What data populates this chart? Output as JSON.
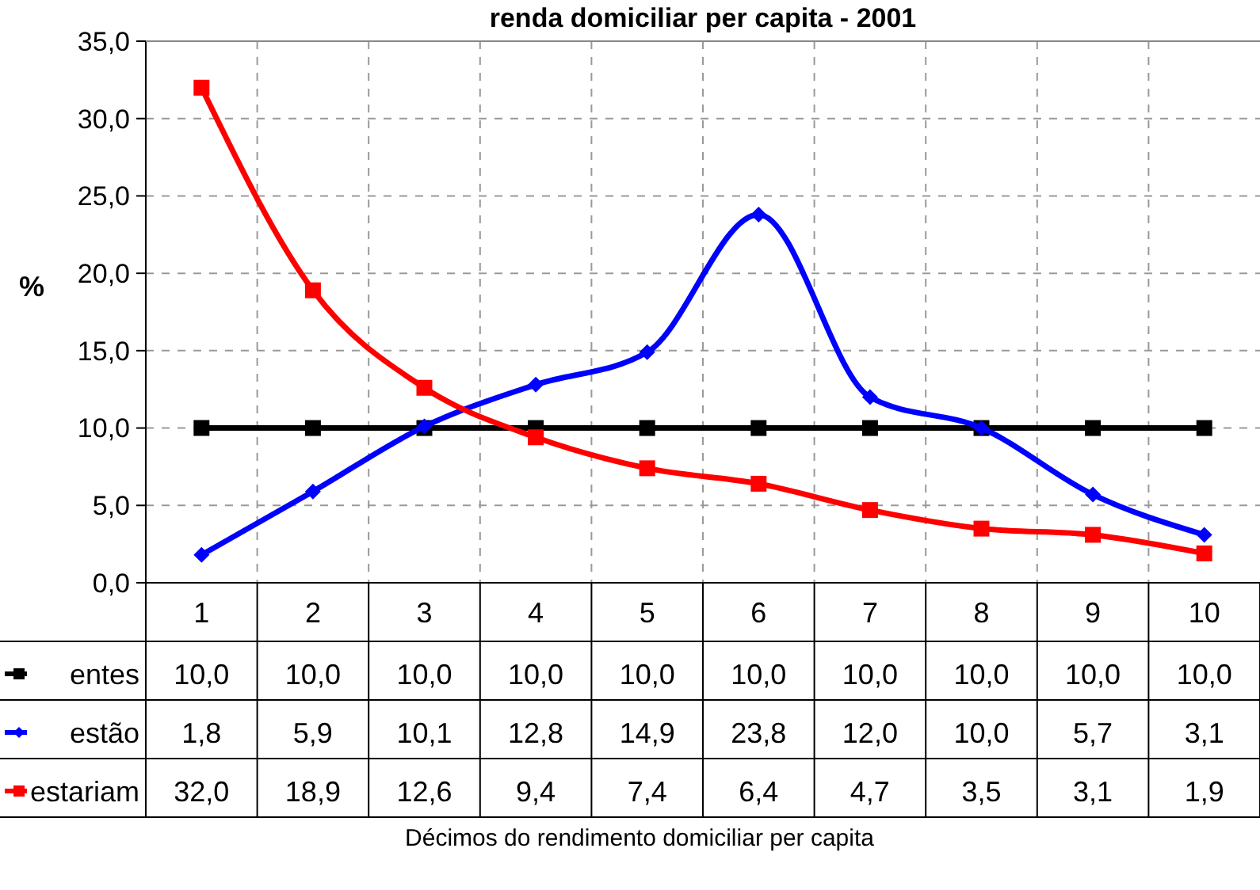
{
  "chart_data": {
    "type": "line",
    "title": "renda domiciliar per capita - 2001",
    "ylabel": "%",
    "annotations": [
      "Décimos do rendimento domiciliar per capita"
    ],
    "categories": [
      "1",
      "2",
      "3",
      "4",
      "5",
      "6",
      "7",
      "8",
      "9",
      "10"
    ],
    "series": [
      {
        "name": "entes",
        "color": "#000000",
        "marker": "square",
        "values": [
          10,
          10,
          10,
          10,
          10,
          10,
          10,
          10,
          10,
          10
        ],
        "value_labels": [
          "10,0",
          "10,0",
          "10,0",
          "10,0",
          "10,0",
          "10,0",
          "10,0",
          "10,0",
          "10,0",
          "10,0"
        ]
      },
      {
        "name": "estão",
        "color": "#0000ff",
        "marker": "diamond",
        "values": [
          1.8,
          5.9,
          10.1,
          12.8,
          14.9,
          23.8,
          12.0,
          10.0,
          5.7,
          3.1
        ],
        "value_labels": [
          "1,8",
          "5,9",
          "10,1",
          "12,8",
          "14,9",
          "23,8",
          "12,0",
          "10,0",
          "5,7",
          "3,1"
        ]
      },
      {
        "name": "estariam",
        "color": "#ff0000",
        "marker": "square",
        "values": [
          32.0,
          18.9,
          12.6,
          9.4,
          7.4,
          6.4,
          4.7,
          3.5,
          3.1,
          1.9
        ],
        "value_labels": [
          "32,0",
          "18,9",
          "12,6",
          "9,4",
          "7,4",
          "6,4",
          "4,7",
          "3,5",
          "3,1",
          "1,9"
        ]
      }
    ],
    "ylim": [
      0,
      35
    ],
    "yticks": [
      {
        "value": 0,
        "label": "0,0"
      },
      {
        "value": 5,
        "label": "5,0"
      },
      {
        "value": 10,
        "label": "10,0"
      },
      {
        "value": 15,
        "label": "15,0"
      },
      {
        "value": 20,
        "label": "20,0"
      },
      {
        "value": 25,
        "label": "25,0"
      },
      {
        "value": 30,
        "label": "30,0"
      },
      {
        "value": 35,
        "label": "35,0"
      }
    ],
    "grid": true,
    "legend": "bottom",
    "line_style": "solid"
  }
}
